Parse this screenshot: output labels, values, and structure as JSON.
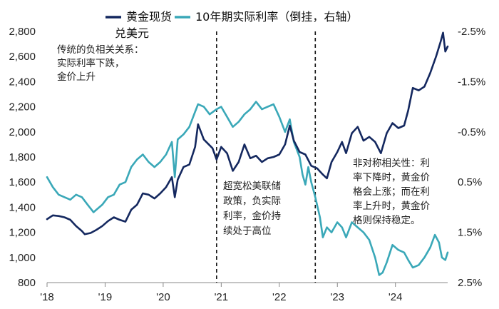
{
  "chart_data": {
    "type": "line",
    "title": "",
    "xlabel": "",
    "ylabel_left": "",
    "ylabel_right": "",
    "x_tick_labels": [
      "'18",
      "'19",
      "'20",
      "'21",
      "'22",
      "'23",
      "'24"
    ],
    "x_tick_years": [
      2018,
      2019,
      2020,
      2021,
      2022,
      2023,
      2024
    ],
    "x_range": [
      2018.0,
      2024.9
    ],
    "left_axis": {
      "range": [
        800,
        2800
      ],
      "ticks": [
        800,
        1000,
        1200,
        1400,
        1600,
        1800,
        2000,
        2200,
        2400,
        2600,
        2800
      ],
      "tick_labels": [
        "800",
        "1,000",
        "1,200",
        "1,400",
        "1,600",
        "1,800",
        "2,000",
        "2,200",
        "2,400",
        "2,600",
        "2,800"
      ]
    },
    "right_axis": {
      "inverted": true,
      "range": [
        -2.5,
        2.5
      ],
      "ticks": [
        -2.5,
        -1.5,
        -0.5,
        0.5,
        1.5,
        2.5
      ],
      "tick_labels": [
        "-2.5%",
        "-1.5%",
        "-0.5%",
        "0.5%",
        "1.5%",
        "2.5%"
      ]
    },
    "vertical_markers": [
      2020.92,
      2022.62
    ],
    "grid": false,
    "legend_position": "top",
    "series": [
      {
        "name": "黄金现货兑美元",
        "name_line1": "黄金现货",
        "name_line2": "兑美元",
        "axis": "left",
        "color": "#14285f",
        "points": [
          [
            2018.0,
            1305
          ],
          [
            2018.1,
            1335
          ],
          [
            2018.2,
            1330
          ],
          [
            2018.3,
            1320
          ],
          [
            2018.4,
            1300
          ],
          [
            2018.5,
            1250
          ],
          [
            2018.6,
            1210
          ],
          [
            2018.65,
            1185
          ],
          [
            2018.75,
            1195
          ],
          [
            2018.85,
            1220
          ],
          [
            2018.95,
            1250
          ],
          [
            2019.05,
            1290
          ],
          [
            2019.15,
            1320
          ],
          [
            2019.25,
            1300
          ],
          [
            2019.35,
            1285
          ],
          [
            2019.45,
            1380
          ],
          [
            2019.55,
            1420
          ],
          [
            2019.65,
            1510
          ],
          [
            2019.75,
            1500
          ],
          [
            2019.85,
            1470
          ],
          [
            2019.95,
            1510
          ],
          [
            2020.05,
            1560
          ],
          [
            2020.15,
            1640
          ],
          [
            2020.2,
            1480
          ],
          [
            2020.25,
            1620
          ],
          [
            2020.35,
            1720
          ],
          [
            2020.45,
            1740
          ],
          [
            2020.55,
            1880
          ],
          [
            2020.6,
            2060
          ],
          [
            2020.7,
            1940
          ],
          [
            2020.85,
            1870
          ],
          [
            2020.92,
            1780
          ],
          [
            2021.0,
            1880
          ],
          [
            2021.1,
            1830
          ],
          [
            2021.2,
            1690
          ],
          [
            2021.3,
            1760
          ],
          [
            2021.4,
            1900
          ],
          [
            2021.5,
            1790
          ],
          [
            2021.6,
            1810
          ],
          [
            2021.7,
            1760
          ],
          [
            2021.8,
            1790
          ],
          [
            2021.9,
            1800
          ],
          [
            2022.0,
            1820
          ],
          [
            2022.1,
            1900
          ],
          [
            2022.18,
            2050
          ],
          [
            2022.25,
            1930
          ],
          [
            2022.35,
            1840
          ],
          [
            2022.45,
            1820
          ],
          [
            2022.55,
            1730
          ],
          [
            2022.65,
            1710
          ],
          [
            2022.75,
            1660
          ],
          [
            2022.82,
            1630
          ],
          [
            2022.9,
            1760
          ],
          [
            2023.0,
            1840
          ],
          [
            2023.08,
            1920
          ],
          [
            2023.15,
            1830
          ],
          [
            2023.25,
            1990
          ],
          [
            2023.35,
            2040
          ],
          [
            2023.45,
            1930
          ],
          [
            2023.55,
            1960
          ],
          [
            2023.65,
            1920
          ],
          [
            2023.75,
            1830
          ],
          [
            2023.85,
            1990
          ],
          [
            2023.95,
            2070
          ],
          [
            2024.05,
            2030
          ],
          [
            2024.15,
            2050
          ],
          [
            2024.22,
            2170
          ],
          [
            2024.3,
            2350
          ],
          [
            2024.4,
            2330
          ],
          [
            2024.5,
            2360
          ],
          [
            2024.6,
            2470
          ],
          [
            2024.7,
            2600
          ],
          [
            2024.78,
            2720
          ],
          [
            2024.82,
            2790
          ],
          [
            2024.86,
            2640
          ],
          [
            2024.9,
            2680
          ]
        ]
      },
      {
        "name": "10年期实际利率（倒挂，右轴）",
        "axis": "right",
        "color": "#3aa8b8",
        "points": [
          [
            2018.0,
            0.4
          ],
          [
            2018.1,
            0.6
          ],
          [
            2018.2,
            0.75
          ],
          [
            2018.3,
            0.8
          ],
          [
            2018.4,
            0.85
          ],
          [
            2018.5,
            0.75
          ],
          [
            2018.6,
            0.8
          ],
          [
            2018.7,
            0.95
          ],
          [
            2018.8,
            1.1
          ],
          [
            2018.85,
            1.05
          ],
          [
            2018.95,
            0.95
          ],
          [
            2019.05,
            0.8
          ],
          [
            2019.15,
            0.75
          ],
          [
            2019.25,
            0.55
          ],
          [
            2019.35,
            0.5
          ],
          [
            2019.45,
            0.2
          ],
          [
            2019.55,
            0.05
          ],
          [
            2019.65,
            -0.05
          ],
          [
            2019.75,
            0.1
          ],
          [
            2019.85,
            0.2
          ],
          [
            2019.95,
            0.1
          ],
          [
            2020.05,
            -0.05
          ],
          [
            2020.15,
            -0.3
          ],
          [
            2020.2,
            0.4
          ],
          [
            2020.25,
            -0.35
          ],
          [
            2020.35,
            -0.45
          ],
          [
            2020.45,
            -0.6
          ],
          [
            2020.55,
            -0.9
          ],
          [
            2020.6,
            -1.05
          ],
          [
            2020.7,
            -1.0
          ],
          [
            2020.8,
            -0.85
          ],
          [
            2020.92,
            -0.95
          ],
          [
            2021.0,
            -1.0
          ],
          [
            2021.1,
            -0.8
          ],
          [
            2021.2,
            -0.6
          ],
          [
            2021.3,
            -0.7
          ],
          [
            2021.4,
            -0.85
          ],
          [
            2021.5,
            -0.95
          ],
          [
            2021.6,
            -1.1
          ],
          [
            2021.7,
            -0.95
          ],
          [
            2021.8,
            -1.0
          ],
          [
            2021.9,
            -1.05
          ],
          [
            2022.0,
            -0.8
          ],
          [
            2022.1,
            -0.5
          ],
          [
            2022.18,
            -0.75
          ],
          [
            2022.25,
            -0.3
          ],
          [
            2022.35,
            0.0
          ],
          [
            2022.4,
            0.35
          ],
          [
            2022.45,
            0.55
          ],
          [
            2022.5,
            0.2
          ],
          [
            2022.55,
            0.5
          ],
          [
            2022.62,
            0.8
          ],
          [
            2022.7,
            1.2
          ],
          [
            2022.75,
            1.6
          ],
          [
            2022.82,
            1.4
          ],
          [
            2022.9,
            1.5
          ],
          [
            2023.0,
            1.3
          ],
          [
            2023.08,
            1.4
          ],
          [
            2023.15,
            1.6
          ],
          [
            2023.25,
            1.3
          ],
          [
            2023.35,
            1.4
          ],
          [
            2023.45,
            1.5
          ],
          [
            2023.55,
            1.65
          ],
          [
            2023.65,
            2.0
          ],
          [
            2023.72,
            2.35
          ],
          [
            2023.78,
            2.3
          ],
          [
            2023.85,
            2.1
          ],
          [
            2023.95,
            1.75
          ],
          [
            2024.05,
            1.85
          ],
          [
            2024.15,
            1.9
          ],
          [
            2024.22,
            2.05
          ],
          [
            2024.3,
            2.2
          ],
          [
            2024.4,
            2.15
          ],
          [
            2024.5,
            2.0
          ],
          [
            2024.6,
            1.8
          ],
          [
            2024.68,
            1.55
          ],
          [
            2024.75,
            1.7
          ],
          [
            2024.8,
            2.0
          ],
          [
            2024.86,
            2.05
          ],
          [
            2024.9,
            1.9
          ]
        ]
      }
    ],
    "annotations": [
      {
        "lines": [
          "传统的负相关关系：",
          "实际利率下跌，",
          "金价上升"
        ]
      },
      {
        "lines": [
          "超宽松美联储",
          "政策，负实际",
          "利率，金价持",
          "续处于高位"
        ]
      },
      {
        "lines": [
          "非对称相关性：利",
          "率下降时，黄金价",
          "格会上涨；而在利",
          "率上升时，黄金价",
          "格则保持稳定。"
        ]
      }
    ]
  }
}
